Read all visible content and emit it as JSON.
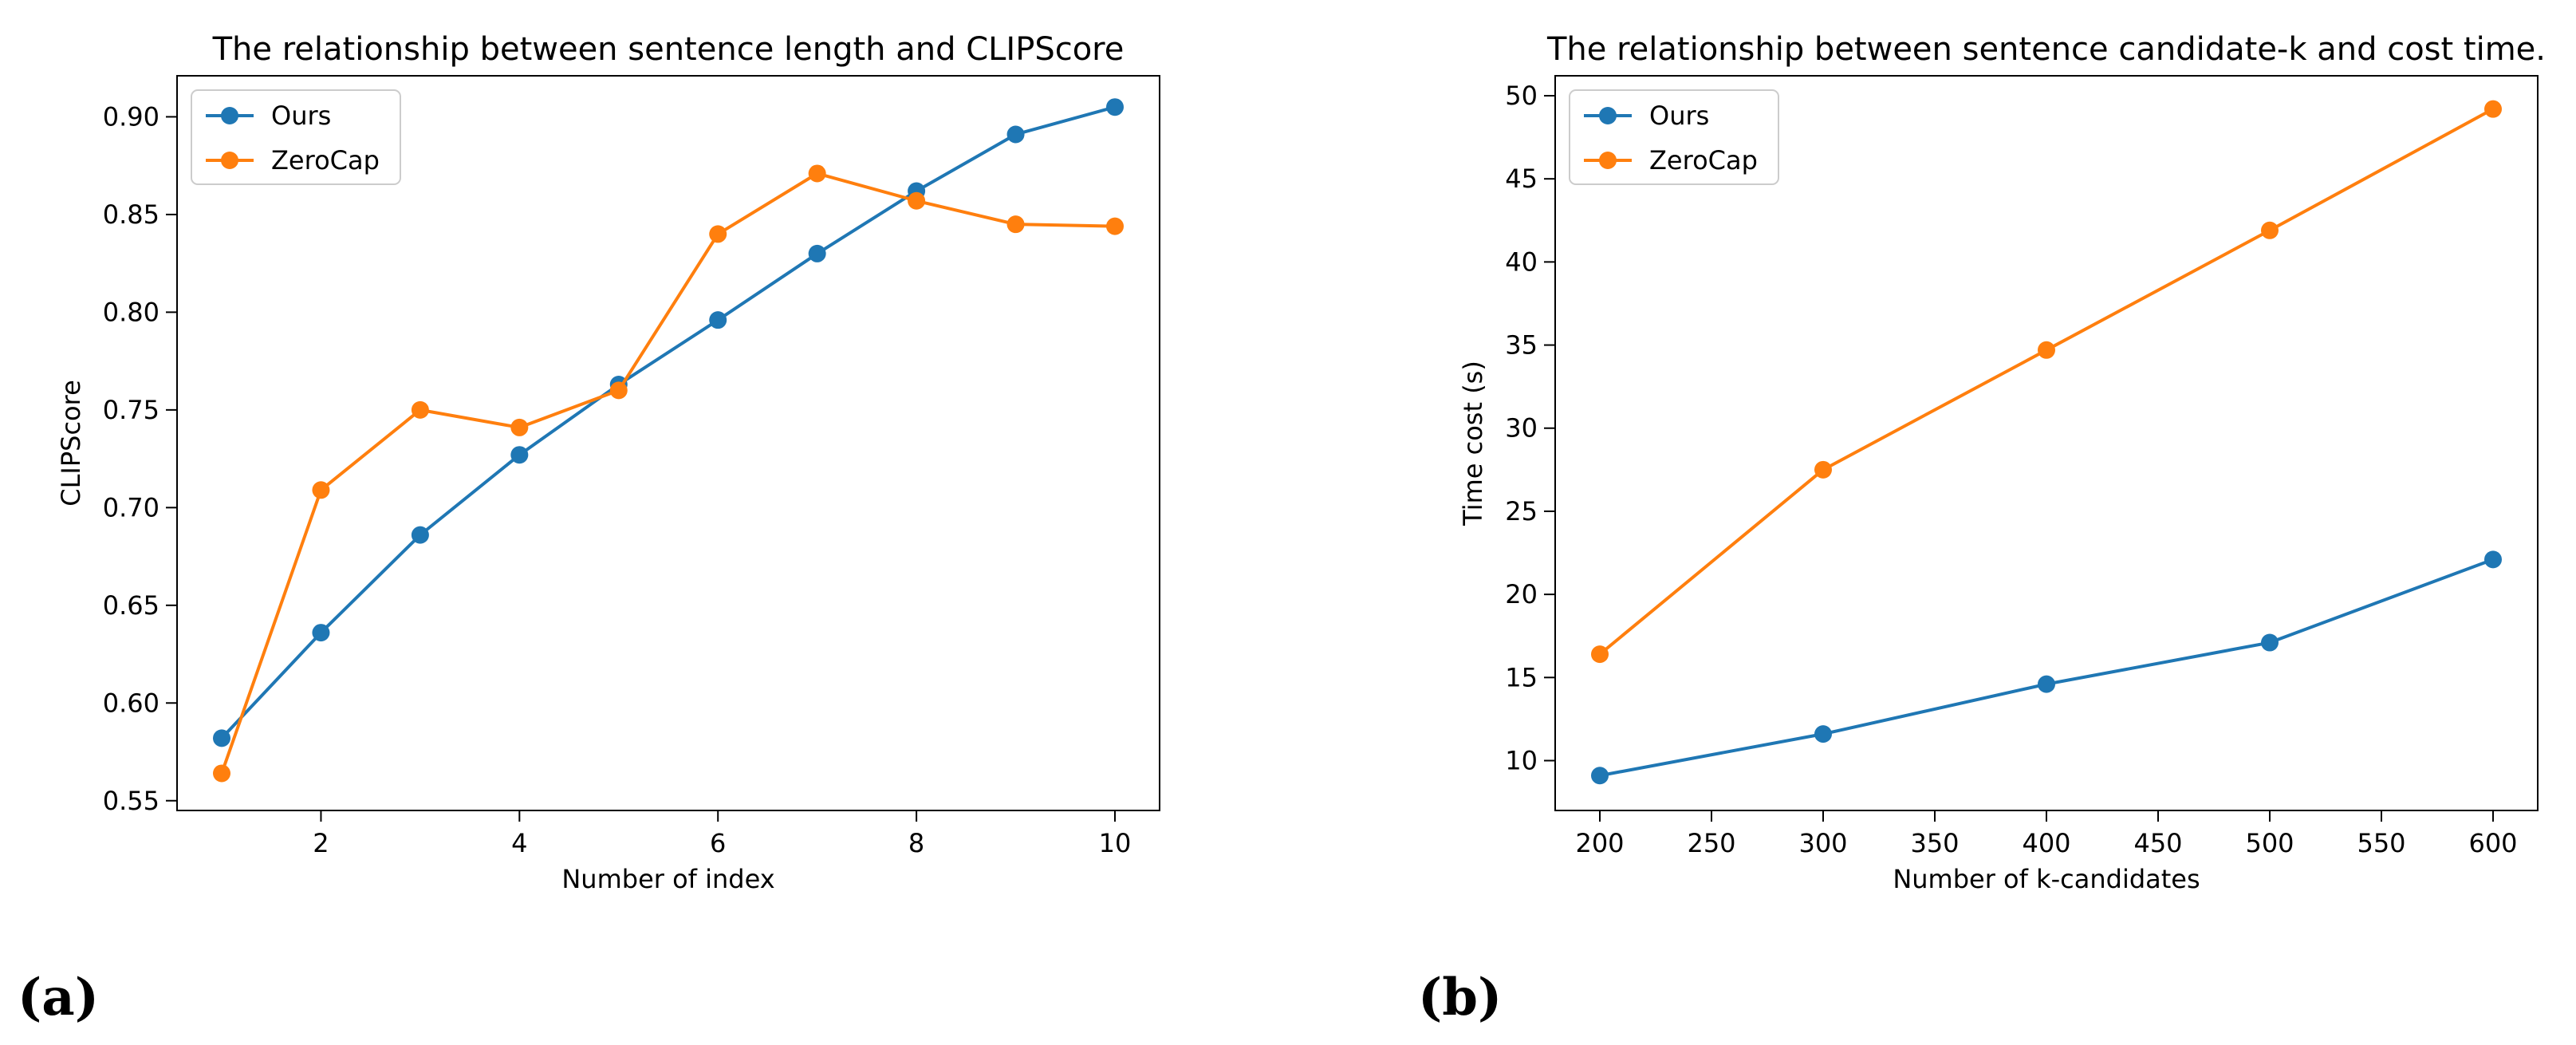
{
  "colors": {
    "ours": "#1f77b4",
    "zerocap": "#ff7f0e",
    "axis": "#000000",
    "legend_border": "#cccccc"
  },
  "panel_labels": [
    "(a)",
    "(b)"
  ],
  "chart_data": [
    {
      "type": "line",
      "title": "The relationship between sentence length and CLIPScore",
      "xlabel": "Number of index",
      "ylabel": "CLIPScore",
      "xlim": [
        0.55,
        10.45
      ],
      "ylim": [
        0.545,
        0.921
      ],
      "xticks": [
        2,
        4,
        6,
        8,
        10
      ],
      "xtick_labels": [
        "2",
        "4",
        "6",
        "8",
        "10"
      ],
      "yticks": [
        0.55,
        0.6,
        0.65,
        0.7,
        0.75,
        0.8,
        0.85,
        0.9
      ],
      "ytick_labels": [
        "0.55",
        "0.60",
        "0.65",
        "0.70",
        "0.75",
        "0.80",
        "0.85",
        "0.90"
      ],
      "legend_position": "upper-left",
      "x": [
        1,
        2,
        3,
        4,
        5,
        6,
        7,
        8,
        9,
        10
      ],
      "series": [
        {
          "name": "Ours",
          "color_key": "ours",
          "values": [
            0.582,
            0.636,
            0.686,
            0.727,
            0.763,
            0.796,
            0.83,
            0.862,
            0.891,
            0.905
          ]
        },
        {
          "name": "ZeroCap",
          "color_key": "zerocap",
          "values": [
            0.564,
            0.709,
            0.75,
            0.741,
            0.76,
            0.84,
            0.871,
            0.857,
            0.845,
            0.844
          ]
        }
      ]
    },
    {
      "type": "line",
      "title": "The relationship between sentence candidate-k and cost time.",
      "xlabel": "Number of k-candidates",
      "ylabel": "Time cost (s)",
      "xlim": [
        180,
        620
      ],
      "ylim": [
        7.0,
        51.2
      ],
      "xticks": [
        200,
        250,
        300,
        350,
        400,
        450,
        500,
        550,
        600
      ],
      "xtick_labels": [
        "200",
        "250",
        "300",
        "350",
        "400",
        "450",
        "500",
        "550",
        "600"
      ],
      "yticks": [
        10,
        15,
        20,
        25,
        30,
        35,
        40,
        45,
        50
      ],
      "ytick_labels": [
        "10",
        "15",
        "20",
        "25",
        "30",
        "35",
        "40",
        "45",
        "50"
      ],
      "legend_position": "upper-left",
      "x": [
        200,
        300,
        400,
        500,
        600
      ],
      "series": [
        {
          "name": "Ours",
          "color_key": "ours",
          "values": [
            9.1,
            11.6,
            14.6,
            17.1,
            22.1
          ]
        },
        {
          "name": "ZeroCap",
          "color_key": "zerocap",
          "values": [
            16.4,
            27.5,
            34.7,
            41.9,
            49.2
          ]
        }
      ]
    }
  ]
}
